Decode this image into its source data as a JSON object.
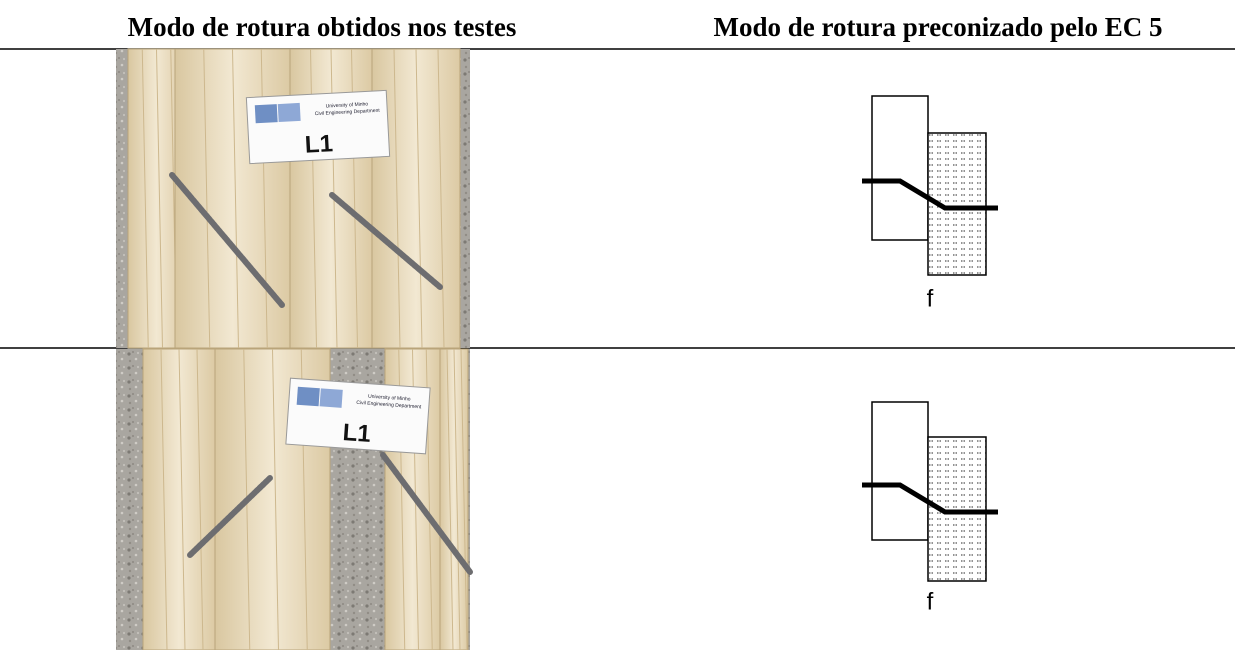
{
  "table": {
    "headers": [
      "Modo de rotura obtidos nos testes",
      "Modo de rotura preconizado pelo EC 5"
    ],
    "rows": [
      {
        "photo": {
          "institution": "University of Minho",
          "department": "Civil Engineering Department",
          "label": "L1"
        },
        "diagram": {
          "label": "f"
        }
      },
      {
        "photo": {
          "institution": "University of Minho",
          "department": "Civil Engineering Department",
          "label": "L1"
        },
        "diagram": {
          "label": "f"
        }
      }
    ]
  }
}
